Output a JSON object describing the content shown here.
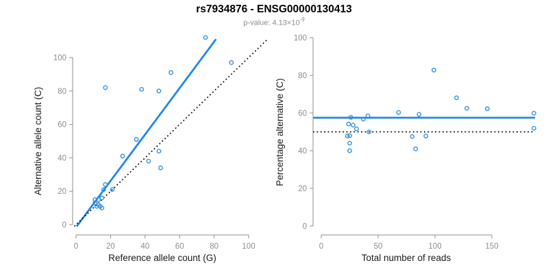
{
  "header": {
    "title": "rs7934876 - ENSG00000130413",
    "pvalue_label": "p-value: 4.13×10",
    "pvalue_exponent": "-9"
  },
  "colors": {
    "line_blue": "#1E86E8",
    "point_blue": "#2E8FDF",
    "dotted_black": "#000000",
    "axis_gray": "#8c8c8c",
    "tick_text_gray": "#8c8c8c",
    "axis_label_black": "#1a1a1a",
    "title_black": "#000000",
    "background": "#ffffff"
  },
  "chart_data": [
    {
      "type": "scatter",
      "panel": "allele-counts",
      "xlabel": "Reference allele count (G)",
      "ylabel": "Alternative allele count (C)",
      "xticks": [
        0,
        20,
        40,
        60,
        80,
        100
      ],
      "yticks": [
        0,
        20,
        40,
        60,
        80,
        100
      ],
      "xlim": [
        -1.5,
        110.5
      ],
      "ylim": [
        -1.5,
        112.5
      ],
      "grid": false,
      "legend": false,
      "marker": "open-circle",
      "points": [
        [
          75,
          112
        ],
        [
          90,
          97
        ],
        [
          55,
          91
        ],
        [
          17,
          82
        ],
        [
          38,
          81
        ],
        [
          48,
          80
        ],
        [
          35,
          51
        ],
        [
          48,
          44
        ],
        [
          27,
          41
        ],
        [
          42,
          38
        ],
        [
          49,
          34
        ],
        [
          17,
          24
        ],
        [
          16,
          21
        ],
        [
          21,
          21
        ],
        [
          15,
          16
        ],
        [
          13,
          15
        ],
        [
          11,
          15
        ],
        [
          11,
          13
        ],
        [
          13,
          12
        ],
        [
          12,
          11
        ],
        [
          14,
          11
        ],
        [
          15,
          10
        ]
      ],
      "lines": [
        {
          "name": "fitted-line",
          "style": "solid",
          "color_key": "line_blue",
          "x1": 0.4,
          "y1": -1.0,
          "x2": 81.1,
          "y2": 111.0
        },
        {
          "name": "identity-line",
          "style": "dotted",
          "color_key": "dotted_black",
          "x1": -1.0,
          "y1": -1.0,
          "x2": 110.5,
          "y2": 110.5
        }
      ]
    },
    {
      "type": "scatter",
      "panel": "percentage-vs-reads",
      "xlabel": "Total number of reads",
      "ylabel": "Percentage alternative (C)",
      "xticks": [
        0,
        50,
        100,
        150
      ],
      "yticks": [
        0,
        20,
        40,
        60,
        80,
        100
      ],
      "xlim": [
        -7,
        190
      ],
      "ylim": [
        0,
        100
      ],
      "grid": false,
      "legend": false,
      "marker": "open-circle",
      "points": [
        [
          187,
          59.9
        ],
        [
          187,
          51.9
        ],
        [
          146,
          62.3
        ],
        [
          99,
          82.8
        ],
        [
          119,
          68.1
        ],
        [
          128,
          62.5
        ],
        [
          86,
          59.3
        ],
        [
          92,
          47.8
        ],
        [
          68,
          60.3
        ],
        [
          80,
          47.5
        ],
        [
          83,
          41.0
        ],
        [
          41,
          58.5
        ],
        [
          37,
          56.8
        ],
        [
          42,
          50.0
        ],
        [
          31,
          51.6
        ],
        [
          28,
          53.6
        ],
        [
          26,
          57.7
        ],
        [
          24,
          54.2
        ],
        [
          25,
          48.0
        ],
        [
          23,
          47.8
        ],
        [
          25,
          44.0
        ],
        [
          25,
          40.0
        ]
      ],
      "hlines": [
        {
          "name": "fitted-percentage-line",
          "style": "solid",
          "color_key": "line_blue",
          "value": 57.5
        },
        {
          "name": "fifty-percent-line",
          "style": "dotted",
          "color_key": "dotted_black",
          "value": 50
        }
      ]
    }
  ]
}
